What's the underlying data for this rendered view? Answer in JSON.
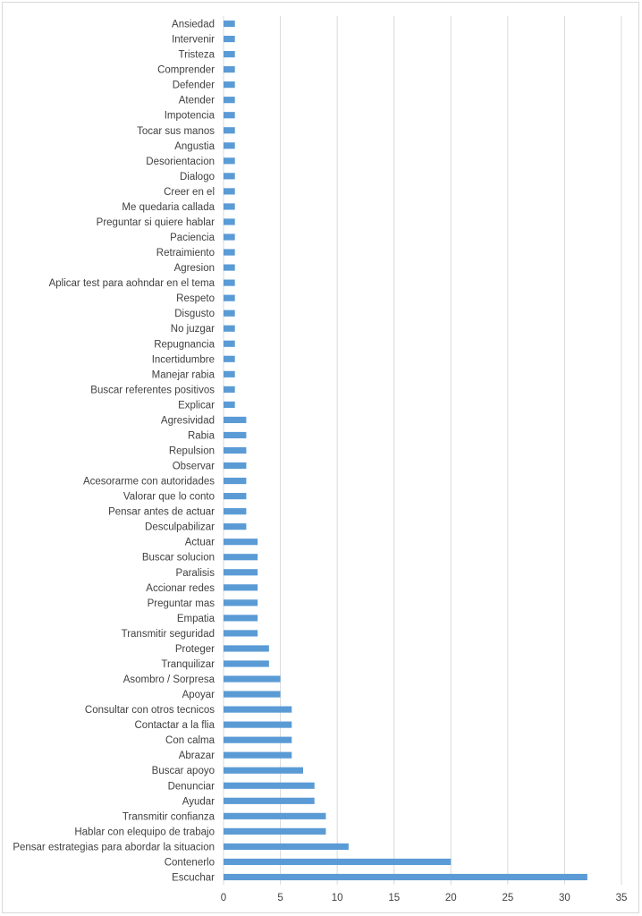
{
  "chart_data": {
    "type": "bar",
    "orientation": "horizontal",
    "categories": [
      "Ansiedad",
      "Intervenir",
      "Tristeza",
      "Comprender",
      "Defender",
      "Atender",
      "Impotencia",
      "Tocar sus manos",
      "Angustia",
      "Desorientacion",
      "Dialogo",
      "Creer en el",
      "Me quedaria callada",
      "Preguntar si quiere hablar",
      "Paciencia",
      "Retraimiento",
      "Agresion",
      "Aplicar test para aohndar en el tema",
      "Respeto",
      "Disgusto",
      "No juzgar",
      "Repugnancia",
      "Incertidumbre",
      "Manejar rabia",
      "Buscar referentes positivos",
      "Explicar",
      "Agresividad",
      "Rabia",
      "Repulsion",
      "Observar",
      "Acesorarme con autoridades",
      "Valorar que lo conto",
      "Pensar antes de actuar",
      "Desculpabilizar",
      "Actuar",
      "Buscar solucion",
      "Paralisis",
      "Accionar redes",
      "Preguntar mas",
      "Empatia",
      "Transmitir seguridad",
      "Proteger",
      "Tranquilizar",
      "Asombro  / Sorpresa",
      "Apoyar",
      "Consultar con otros tecnicos",
      "Contactar a la flia",
      "Con calma",
      "Abrazar",
      "Buscar apoyo",
      "Denunciar",
      "Ayudar",
      "Transmitir confianza",
      "Hablar con elequipo de trabajo",
      "Pensar estrategias para abordar la situacion",
      "Contenerlo",
      "Escuchar"
    ],
    "values": [
      1,
      1,
      1,
      1,
      1,
      1,
      1,
      1,
      1,
      1,
      1,
      1,
      1,
      1,
      1,
      1,
      1,
      1,
      1,
      1,
      1,
      1,
      1,
      1,
      1,
      1,
      2,
      2,
      2,
      2,
      2,
      2,
      2,
      2,
      3,
      3,
      3,
      3,
      3,
      3,
      3,
      4,
      4,
      5,
      5,
      6,
      6,
      6,
      6,
      7,
      8,
      8,
      9,
      9,
      11,
      20,
      32
    ],
    "xlim": [
      0,
      35
    ],
    "xticks": [
      "0",
      "5",
      "10",
      "15",
      "20",
      "25",
      "30",
      "35"
    ],
    "grid": true,
    "bar_color": "#5b9bd5",
    "grid_color": "#d9d9d9",
    "title": "",
    "xlabel": "",
    "ylabel": ""
  }
}
